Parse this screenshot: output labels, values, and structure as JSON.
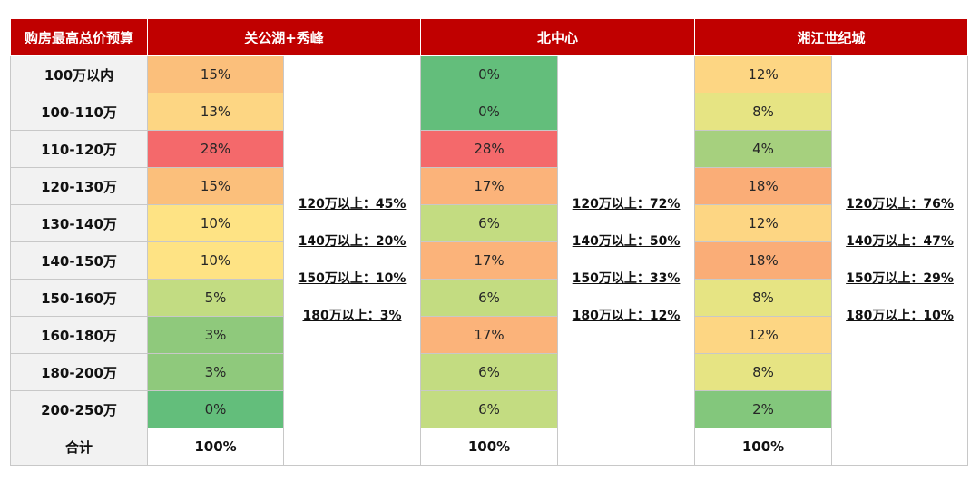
{
  "chart_data": {
    "type": "table",
    "columns": [
      "购房最高总价预算",
      "关公湖+秀峰",
      "北中心",
      "湘江世纪城"
    ],
    "rows": [
      "100万以内",
      "100-110万",
      "110-120万",
      "120-130万",
      "130-140万",
      "140-150万",
      "150-160万",
      "160-180万",
      "180-200万",
      "200-250万"
    ],
    "total_label": "合计",
    "series": [
      {
        "name": "关公湖+秀峰",
        "values": [
          "15%",
          "13%",
          "28%",
          "15%",
          "10%",
          "10%",
          "5%",
          "3%",
          "3%",
          "0%"
        ],
        "colors": [
          "#fbbf7b",
          "#fdd683",
          "#f4696b",
          "#fbbf7b",
          "#fee384",
          "#fee384",
          "#c2dc82",
          "#8fc97c",
          "#8fc97c",
          "#63be7b"
        ],
        "total": "100%",
        "summary": [
          "120万以上：45%",
          "140万以上：20%",
          "150万以上：10%",
          "180万以上：3%"
        ]
      },
      {
        "name": "北中心",
        "values": [
          "0%",
          "0%",
          "28%",
          "17%",
          "6%",
          "17%",
          "6%",
          "17%",
          "6%",
          "6%"
        ],
        "colors": [
          "#63be7b",
          "#63be7b",
          "#f4696b",
          "#fbb37a",
          "#c3dc81",
          "#fbb37a",
          "#c3dc81",
          "#fbb37a",
          "#c3dc81",
          "#c3dc81"
        ],
        "total": "100%",
        "summary": [
          "120万以上：72%",
          "140万以上：50%",
          "150万以上：33%",
          "180万以上：12%"
        ]
      },
      {
        "name": "湘江世纪城",
        "values": [
          "12%",
          "8%",
          "4%",
          "18%",
          "12%",
          "18%",
          "8%",
          "12%",
          "8%",
          "2%"
        ],
        "colors": [
          "#fdd683",
          "#e6e483",
          "#a6d07e",
          "#faad77",
          "#fdd683",
          "#faad77",
          "#e6e483",
          "#fdd683",
          "#e6e483",
          "#83c77c"
        ],
        "total": "100%",
        "summary": [
          "120万以上：76%",
          "140万以上：47%",
          "150万以上：29%",
          "180万以上：10%"
        ]
      }
    ]
  }
}
